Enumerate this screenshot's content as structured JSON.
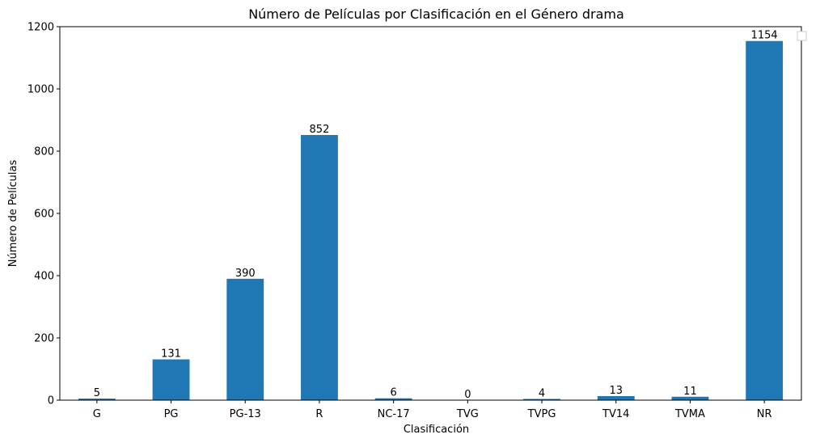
{
  "chart_data": {
    "type": "bar",
    "title": "Número de Películas por Clasificación en el Género drama",
    "xlabel": "Clasificación",
    "ylabel": "Número de Películas",
    "categories": [
      "G",
      "PG",
      "PG-13",
      "R",
      "NC-17",
      "TVG",
      "TVPG",
      "TV14",
      "TVMA",
      "NR"
    ],
    "values": [
      5,
      131,
      390,
      852,
      6,
      0,
      4,
      13,
      11,
      1154
    ],
    "ylim": [
      0,
      1200
    ],
    "yticks": [
      0,
      200,
      400,
      600,
      800,
      1000,
      1200
    ],
    "grid": false,
    "legend": "top-right (empty)",
    "bar_color": "#1f77b4"
  }
}
